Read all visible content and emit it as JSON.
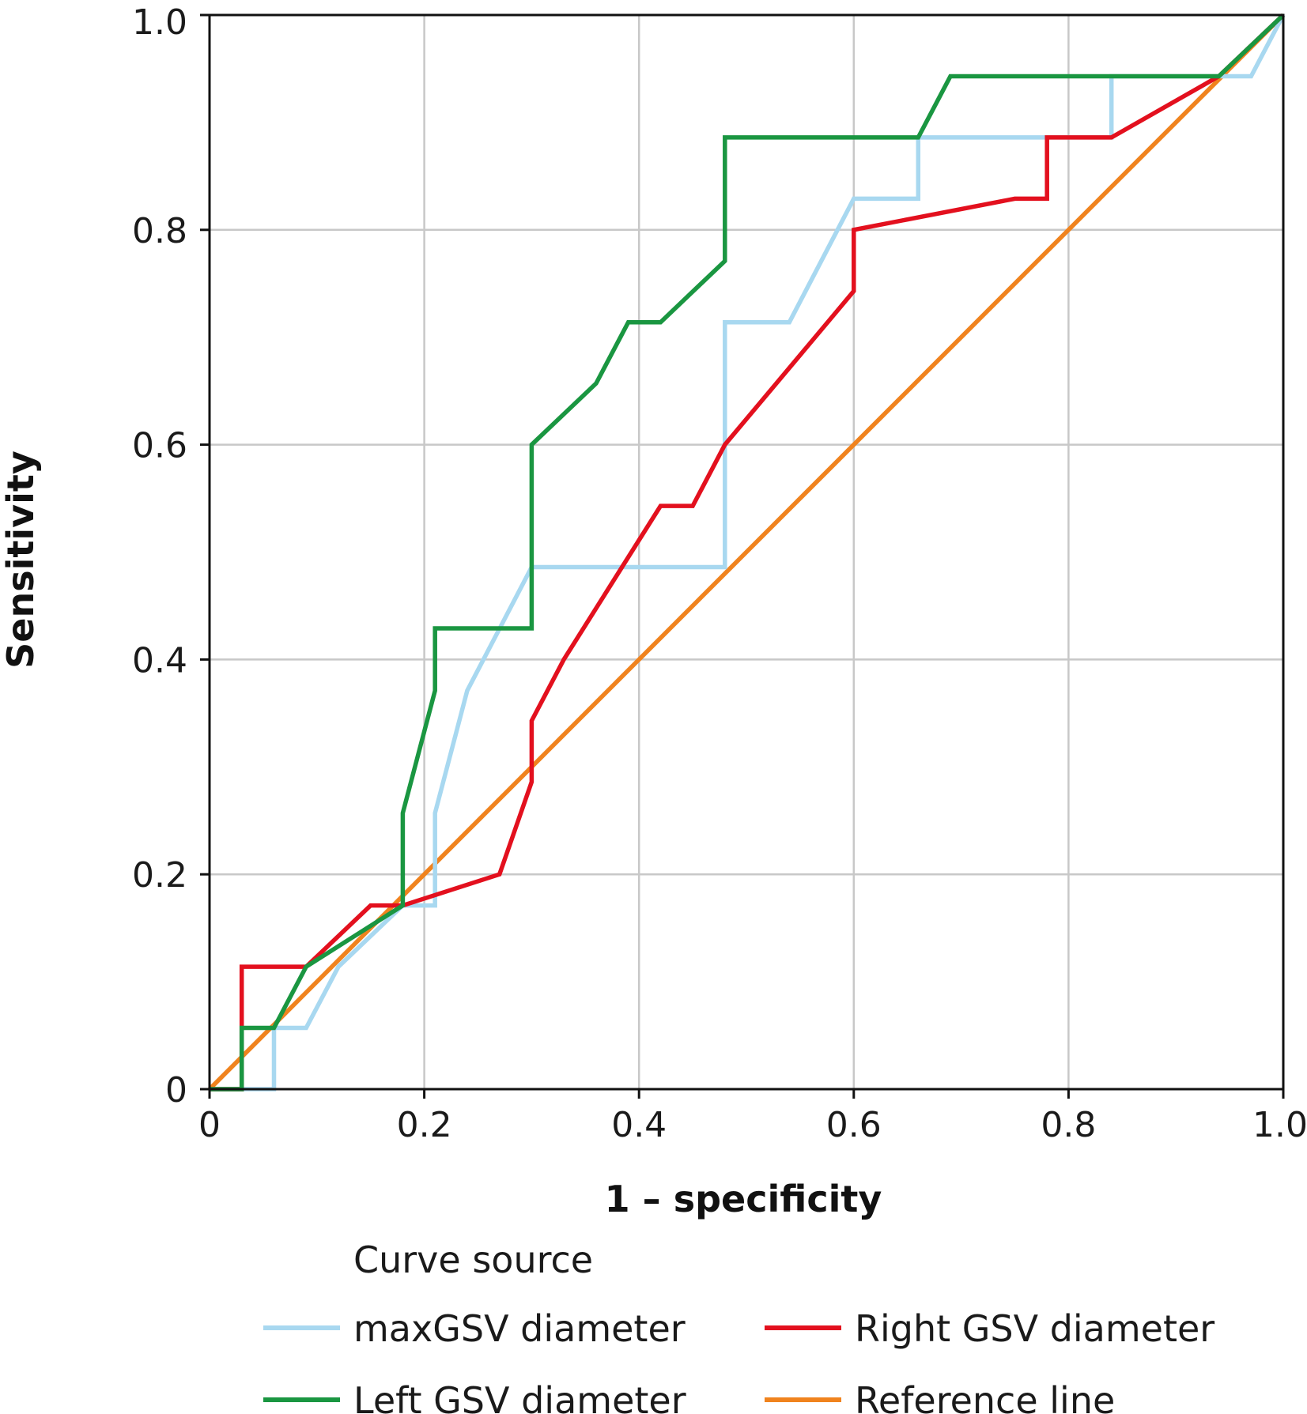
{
  "chart_data": {
    "type": "line",
    "xlabel": "1 – specificity",
    "ylabel": "Sensitivity",
    "xlim": [
      0,
      1
    ],
    "ylim": [
      0,
      1
    ],
    "xticks": [
      0,
      0.2,
      0.4,
      0.6,
      0.8,
      1.0
    ],
    "yticks": [
      0,
      0.2,
      0.4,
      0.6,
      0.8,
      1.0
    ],
    "xtick_labels": [
      "0",
      "0.2",
      "0.4",
      "0.6",
      "0.8",
      "1.0"
    ],
    "ytick_labels": [
      "0",
      "0.2",
      "0.4",
      "0.6",
      "0.8",
      "1.0"
    ],
    "grid": true,
    "legend": {
      "title": "Curve source",
      "placement": "bottom",
      "entries": [
        "maxGSV diameter",
        "Right GSV diameter",
        "Left GSV diameter",
        "Reference line"
      ]
    },
    "series": [
      {
        "name": "maxGSV diameter",
        "color": "#a8d8f0",
        "x": [
          0,
          0.06,
          0.06,
          0.09,
          0.12,
          0.18,
          0.21,
          0.21,
          0.24,
          0.3,
          0.48,
          0.48,
          0.54,
          0.6,
          0.66,
          0.66,
          0.84,
          0.84,
          0.97,
          1.0
        ],
        "y": [
          0,
          0,
          0.057,
          0.057,
          0.114,
          0.171,
          0.171,
          0.257,
          0.371,
          0.486,
          0.486,
          0.714,
          0.714,
          0.829,
          0.829,
          0.886,
          0.886,
          0.943,
          0.943,
          1.0
        ]
      },
      {
        "name": "Right GSV diameter",
        "color": "#e3101e",
        "x": [
          0,
          0.03,
          0.03,
          0.09,
          0.15,
          0.18,
          0.27,
          0.3,
          0.3,
          0.33,
          0.42,
          0.45,
          0.48,
          0.6,
          0.6,
          0.75,
          0.78,
          0.78,
          0.84,
          0.94,
          1.0
        ],
        "y": [
          0,
          0,
          0.114,
          0.114,
          0.171,
          0.171,
          0.2,
          0.286,
          0.343,
          0.4,
          0.543,
          0.543,
          0.6,
          0.743,
          0.8,
          0.829,
          0.829,
          0.886,
          0.886,
          0.943,
          1.0
        ]
      },
      {
        "name": "Left GSV diameter",
        "color": "#1a9641",
        "x": [
          0,
          0.03,
          0.03,
          0.06,
          0.09,
          0.18,
          0.18,
          0.21,
          0.21,
          0.3,
          0.3,
          0.36,
          0.39,
          0.42,
          0.48,
          0.48,
          0.66,
          0.69,
          0.94,
          1.0
        ],
        "y": [
          0,
          0,
          0.057,
          0.057,
          0.114,
          0.171,
          0.257,
          0.371,
          0.429,
          0.429,
          0.6,
          0.657,
          0.714,
          0.714,
          0.771,
          0.886,
          0.886,
          0.943,
          0.943,
          1.0
        ]
      },
      {
        "name": "Reference line",
        "color": "#f0831e",
        "x": [
          0,
          1
        ],
        "y": [
          0,
          1
        ]
      }
    ]
  }
}
